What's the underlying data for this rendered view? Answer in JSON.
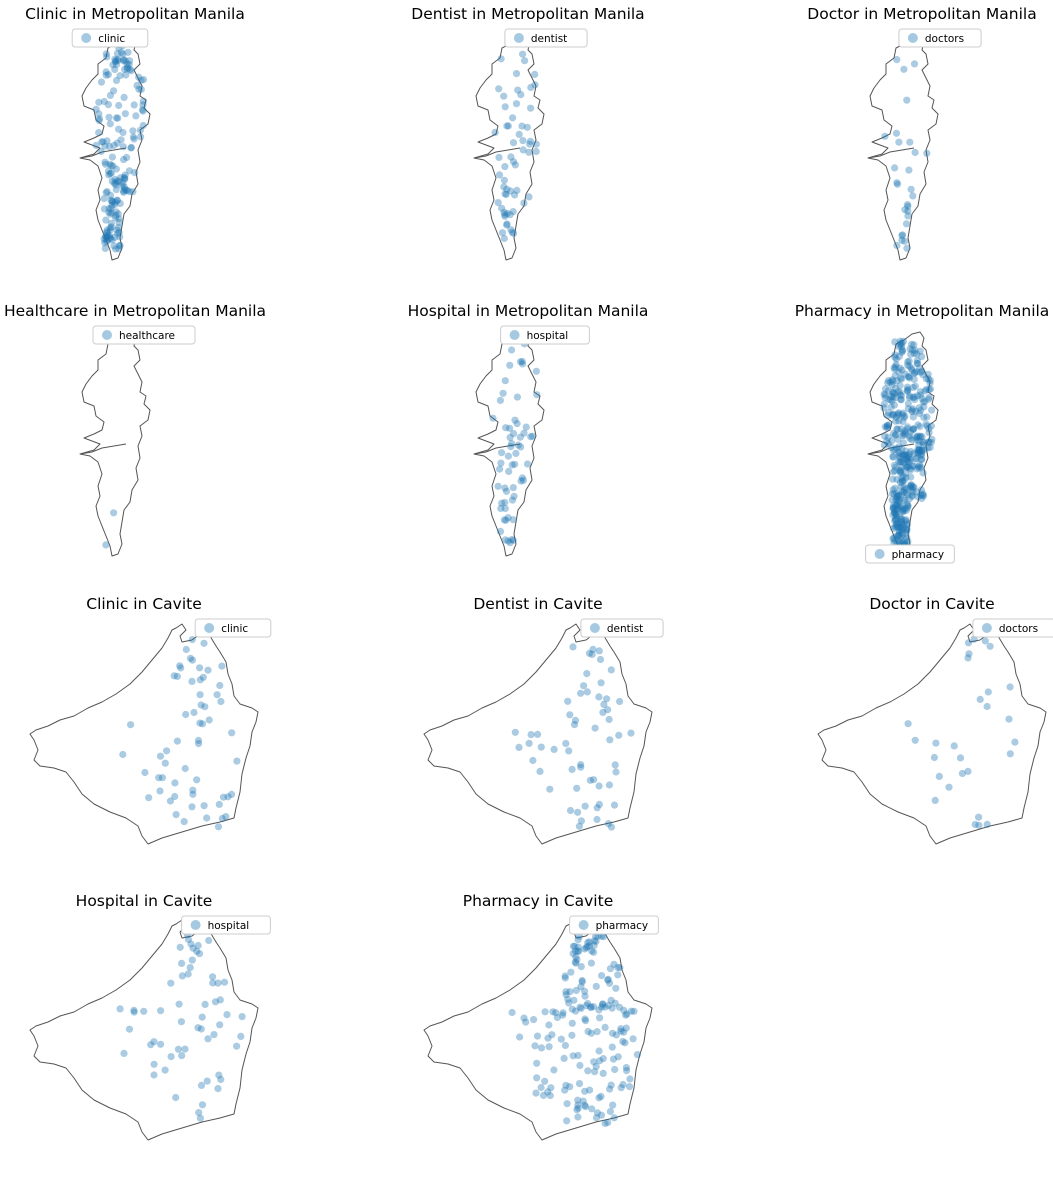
{
  "figure": {
    "marker_color": "#1f77b4",
    "marker_alpha": 0.38,
    "outline_color": "#555555"
  },
  "chart_data": [
    {
      "type": "scatter",
      "title": "Clinic in Metropolitan Manila",
      "region": "manila",
      "legend": "clinic",
      "legend_position": "top-center",
      "density": "high"
    },
    {
      "type": "scatter",
      "title": "Dentist in Metropolitan Manila",
      "region": "manila",
      "legend": "dentist",
      "legend_position": "top-center",
      "density": "medium"
    },
    {
      "type": "scatter",
      "title": "Doctor in Metropolitan Manila",
      "region": "manila",
      "legend": "doctors",
      "legend_position": "top-center",
      "density": "low"
    },
    {
      "type": "scatter",
      "title": "Healthcare in Metropolitan Manila",
      "region": "manila",
      "legend": "healthcare",
      "legend_position": "top-center",
      "density": "single"
    },
    {
      "type": "scatter",
      "title": "Hospital in Metropolitan Manila",
      "region": "manila",
      "legend": "hospital",
      "legend_position": "top-center",
      "density": "medium"
    },
    {
      "type": "scatter",
      "title": "Pharmacy in Metropolitan Manila",
      "region": "manila",
      "legend": "pharmacy",
      "legend_position": "bottom-center",
      "density": "very-high"
    },
    {
      "type": "scatter",
      "title": "Clinic in Cavite",
      "region": "cavite",
      "legend": "clinic",
      "legend_position": "top-right",
      "density": "medium"
    },
    {
      "type": "scatter",
      "title": "Dentist in Cavite",
      "region": "cavite",
      "legend": "dentist",
      "legend_position": "top-right",
      "density": "medium"
    },
    {
      "type": "scatter",
      "title": "Doctor in Cavite",
      "region": "cavite",
      "legend": "doctors",
      "legend_position": "top-right",
      "density": "low"
    },
    {
      "type": "scatter",
      "title": "Hospital in Cavite",
      "region": "cavite",
      "legend": "hospital",
      "legend_position": "top-right",
      "density": "medium"
    },
    {
      "type": "scatter",
      "title": "Pharmacy in Cavite",
      "region": "cavite",
      "legend": "pharmacy",
      "legend_position": "top-right",
      "density": "high"
    }
  ]
}
